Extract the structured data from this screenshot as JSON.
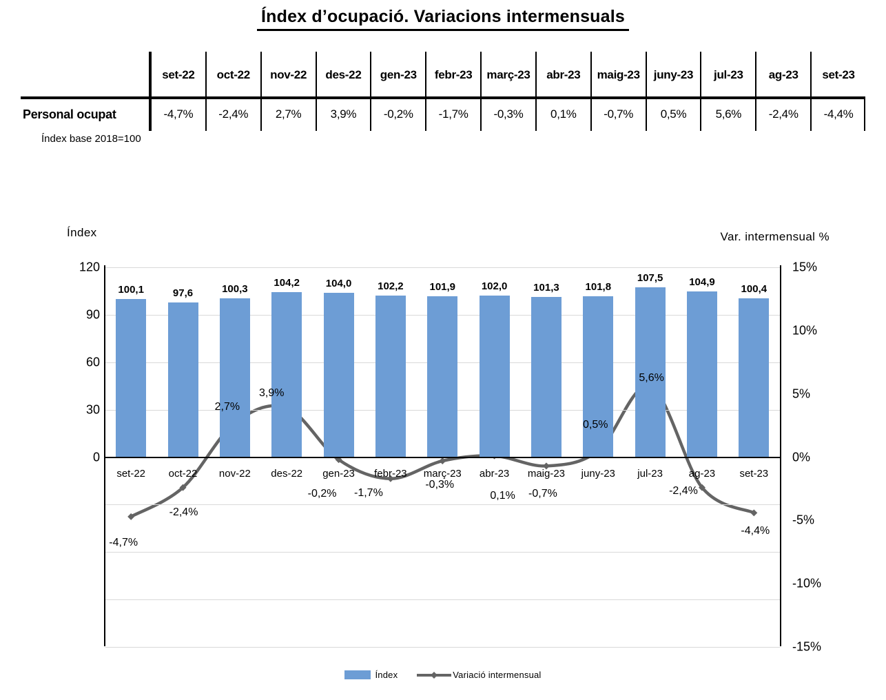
{
  "title": "Índex d’ocupació. Variacions intermensuals",
  "note": "Índex base 2018=100",
  "table": {
    "row_label": "Personal ocupat",
    "columns": [
      "set-22",
      "oct-22",
      "nov-22",
      "des-22",
      "gen-23",
      "febr-23",
      "març-23",
      "abr-23",
      "maig-23",
      "juny-23",
      "jul-23",
      "ag-23",
      "set-23"
    ],
    "values": [
      "-4,7%",
      "-2,4%",
      "2,7%",
      "3,9%",
      "-0,2%",
      "-1,7%",
      "-0,3%",
      "0,1%",
      "-0,7%",
      "0,5%",
      "5,6%",
      "-2,4%",
      "-4,4%"
    ]
  },
  "chart_data": {
    "type": "combo",
    "categories": [
      "set-22",
      "oct-22",
      "nov-22",
      "des-22",
      "gen-23",
      "febr-23",
      "març-23",
      "abr-23",
      "maig-23",
      "juny-23",
      "jul-23",
      "ag-23",
      "set-23"
    ],
    "series": [
      {
        "name": "Índex",
        "type": "bar",
        "axis": "left",
        "color": "#6D9DD5",
        "values": [
          100.1,
          97.6,
          100.3,
          104.2,
          104.0,
          102.2,
          101.9,
          102.0,
          101.3,
          101.8,
          107.5,
          104.9,
          100.4
        ],
        "labels": [
          "100,1",
          "97,6",
          "100,3",
          "104,2",
          "104,0",
          "102,2",
          "101,9",
          "102,0",
          "101,3",
          "101,8",
          "107,5",
          "104,9",
          "100,4"
        ]
      },
      {
        "name": "Variació intermensual",
        "type": "line",
        "axis": "right",
        "color": "#646464",
        "values": [
          -4.7,
          -2.4,
          2.7,
          3.9,
          -0.2,
          -1.7,
          -0.3,
          0.1,
          -0.7,
          0.5,
          5.6,
          -2.4,
          -4.4
        ],
        "labels": [
          "-4,7%",
          "-2,4%",
          "2,7%",
          "3,9%",
          "-0,2%",
          "-1,7%",
          "-0,3%",
          "0,1%",
          "-0,7%",
          "0,5%",
          "5,6%",
          "-2,4%",
          "-4,4%"
        ]
      }
    ],
    "left_axis": {
      "title": "Índex",
      "ticks": [
        "120",
        "90",
        "60",
        "30",
        "0"
      ],
      "tick_values": [
        120,
        90,
        60,
        30,
        0
      ],
      "min": 0,
      "max": 120,
      "major": 30
    },
    "right_axis": {
      "title": "Var. intermensual %",
      "ticks": [
        "15%",
        "10%",
        "5%",
        "0%",
        "-5%",
        "-10%",
        "-15%"
      ],
      "tick_values": [
        15,
        10,
        5,
        0,
        -5,
        -10,
        -15
      ],
      "min": -15,
      "max": 15,
      "major": 5
    },
    "legend": [
      {
        "label": "Índex"
      },
      {
        "label": "Variació intermensual"
      }
    ],
    "grid": {
      "on": true,
      "color": "#d9d9d9"
    },
    "zero_line_color": "#000000",
    "layout_hint": "bars on left axis 0-120; line on right axis -15% to 15%; zero of both axes aligned at plot middle"
  }
}
